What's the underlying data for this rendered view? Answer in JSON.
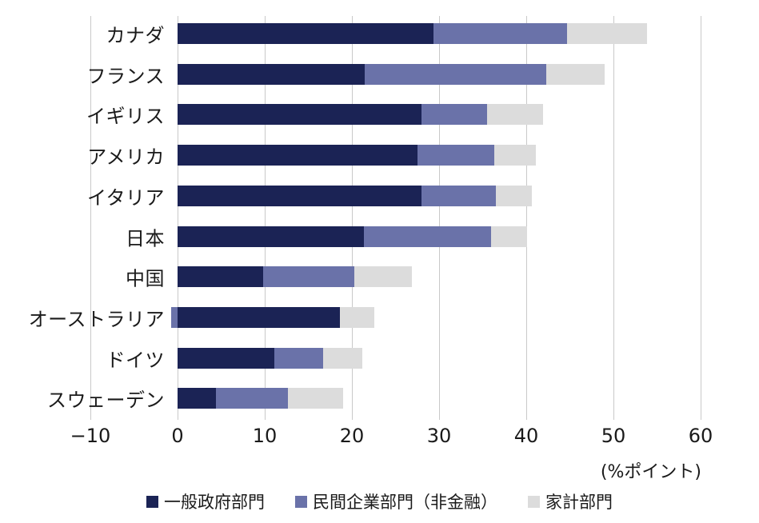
{
  "chart_data": {
    "type": "bar",
    "orientation": "horizontal",
    "stacked": true,
    "title": "",
    "xlabel": "(%ポイント)",
    "ylabel": "",
    "xlim": [
      -10,
      60
    ],
    "x_ticks": [
      -10,
      0,
      10,
      20,
      30,
      40,
      50,
      60
    ],
    "grid": true,
    "legend_position": "bottom",
    "categories": [
      "カナダ",
      "フランス",
      "イギリス",
      "アメリカ",
      "イタリア",
      "日本",
      "中国",
      "オーストラリア",
      "ドイツ",
      "スウェーデン"
    ],
    "series": [
      {
        "name": "一般政府部門",
        "color": "#1b2355",
        "values": [
          29.4,
          21.5,
          28.0,
          27.5,
          28.0,
          21.4,
          9.8,
          18.6,
          11.1,
          4.4
        ]
      },
      {
        "name": "民間企業部門（非金融）",
        "color": "#6a72a9",
        "values": [
          15.3,
          20.8,
          7.5,
          8.8,
          8.5,
          14.6,
          10.5,
          -0.7,
          5.6,
          8.3
        ]
      },
      {
        "name": "家計部門",
        "color": "#dcdcdc",
        "values": [
          9.2,
          6.7,
          6.4,
          4.8,
          4.1,
          4.1,
          6.6,
          4.0,
          4.5,
          6.3
        ]
      }
    ]
  },
  "axis": {
    "tick_labels": [
      "−10",
      "0",
      "10",
      "20",
      "30",
      "40",
      "50",
      "60"
    ],
    "unit_label": "(%ポイント)"
  },
  "legend": {
    "items": [
      {
        "label": "一般政府部門",
        "color": "#1b2355"
      },
      {
        "label": "民間企業部門（非金融）",
        "color": "#6a72a9"
      },
      {
        "label": "家計部門",
        "color": "#dcdcdc"
      }
    ]
  },
  "colors": {
    "grid": "#c9c9c9",
    "text": "#1a1a1a",
    "background": "#ffffff"
  }
}
